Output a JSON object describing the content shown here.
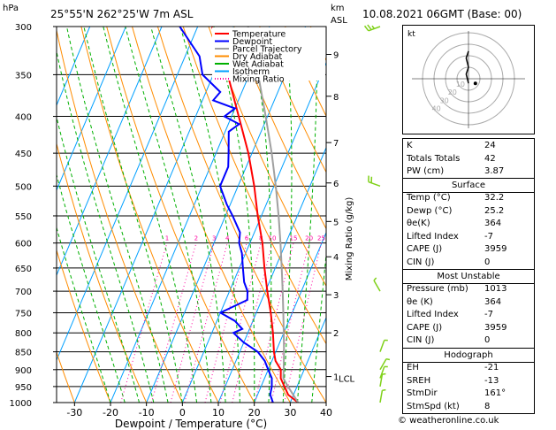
{
  "header": {
    "pressure_unit": "hPa",
    "location": "25°55'N  262°25'W  7m  ASL",
    "height_unit": "km",
    "height_unit2": "ASL",
    "datetime": "10.08.2021  06GMT  (Base: 00)"
  },
  "legend": {
    "items": [
      {
        "label": "Temperature",
        "color": "#ff0000",
        "style": "solid"
      },
      {
        "label": "Dewpoint",
        "color": "#0000ff",
        "style": "solid"
      },
      {
        "label": "Parcel Trajectory",
        "color": "#a0a0a0",
        "style": "solid"
      },
      {
        "label": "Dry Adiabat",
        "color": "#ff8c00",
        "style": "solid"
      },
      {
        "label": "Wet Adiabat",
        "color": "#00b000",
        "style": "solid"
      },
      {
        "label": "Isotherm",
        "color": "#00a0ff",
        "style": "solid"
      },
      {
        "label": "Mixing Ratio",
        "color": "#ff00a0",
        "style": "dotted"
      }
    ]
  },
  "chart_data": {
    "type": "line",
    "title": "",
    "xlabel": "Dewpoint / Temperature (°C)",
    "ylabel": "hPa",
    "y2label": "Mixing Ratio (g/kg)",
    "xlim": [
      -35,
      40
    ],
    "ylim": [
      1000,
      300
    ],
    "y_scale": "log",
    "x_ticks": [
      -30,
      -20,
      -10,
      0,
      10,
      20,
      30,
      40
    ],
    "pressure_levels": [
      300,
      350,
      400,
      450,
      500,
      550,
      600,
      650,
      700,
      750,
      800,
      850,
      900,
      950,
      1000
    ],
    "km_ticks": [
      {
        "km": "1",
        "p": 920
      },
      {
        "km": "2",
        "p": 800
      },
      {
        "km": "3",
        "p": 708
      },
      {
        "km": "4",
        "p": 627
      },
      {
        "km": "5",
        "p": 560
      },
      {
        "km": "6",
        "p": 495
      },
      {
        "km": "7",
        "p": 435
      },
      {
        "km": "8",
        "p": 375
      },
      {
        "km": "9",
        "p": 328
      }
    ],
    "lcl": {
      "label": "LCL",
      "p": 925
    },
    "mixing_ratio_labels": [
      "1",
      "2",
      "3",
      "4",
      "6",
      "8",
      "10",
      "15",
      "20",
      "25"
    ],
    "mixing_ratio_values": [
      1,
      2,
      3,
      4,
      6,
      8,
      10,
      15,
      20,
      25
    ],
    "series": [
      {
        "name": "Temperature",
        "color": "#ff0000",
        "points": [
          [
            1000,
            32.2
          ],
          [
            975,
            28.5
          ],
          [
            950,
            26.5
          ],
          [
            925,
            24.5
          ],
          [
            900,
            23.5
          ],
          [
            875,
            21
          ],
          [
            850,
            19.5
          ],
          [
            800,
            17
          ],
          [
            750,
            14
          ],
          [
            700,
            10.5
          ],
          [
            650,
            7
          ],
          [
            600,
            3.5
          ],
          [
            550,
            -1
          ],
          [
            500,
            -5.5
          ],
          [
            450,
            -11
          ],
          [
            400,
            -18
          ],
          [
            350,
            -26
          ],
          [
            300,
            -36
          ]
        ]
      },
      {
        "name": "Dewpoint",
        "color": "#0000ff",
        "points": [
          [
            1000,
            25.2
          ],
          [
            975,
            23.5
          ],
          [
            950,
            23
          ],
          [
            925,
            22
          ],
          [
            900,
            20
          ],
          [
            875,
            18
          ],
          [
            850,
            15
          ],
          [
            825,
            10
          ],
          [
            800,
            6
          ],
          [
            790,
            8
          ],
          [
            770,
            5
          ],
          [
            750,
            0
          ],
          [
            720,
            6
          ],
          [
            700,
            5
          ],
          [
            680,
            3
          ],
          [
            650,
            1
          ],
          [
            620,
            -1
          ],
          [
            600,
            -3
          ],
          [
            580,
            -4
          ],
          [
            550,
            -8
          ],
          [
            530,
            -11
          ],
          [
            500,
            -15
          ],
          [
            470,
            -15
          ],
          [
            450,
            -16.5
          ],
          [
            420,
            -19
          ],
          [
            410,
            -17
          ],
          [
            400,
            -22
          ],
          [
            390,
            -20
          ],
          [
            380,
            -27
          ],
          [
            370,
            -26
          ],
          [
            350,
            -33
          ],
          [
            330,
            -36
          ],
          [
            300,
            -45
          ]
        ]
      },
      {
        "name": "Parcel Trajectory",
        "color": "#a0a0a0",
        "points": [
          [
            1000,
            32.2
          ],
          [
            950,
            27.5
          ],
          [
            925,
            25.2
          ],
          [
            900,
            24.3
          ],
          [
            850,
            22.3
          ],
          [
            800,
            20
          ],
          [
            750,
            17.5
          ],
          [
            700,
            14.8
          ],
          [
            650,
            11.8
          ],
          [
            600,
            8.5
          ],
          [
            550,
            4.8
          ],
          [
            500,
            0.5
          ],
          [
            450,
            -4.5
          ],
          [
            400,
            -10.5
          ],
          [
            350,
            -17.5
          ],
          [
            300,
            -26
          ]
        ]
      }
    ]
  },
  "hodograph": {
    "unit": "kt",
    "ring_labels": [
      "10",
      "20",
      "30",
      "40"
    ],
    "trace": [
      [
        0,
        -2
      ],
      [
        -1,
        2
      ],
      [
        0,
        5
      ],
      [
        -1,
        9
      ],
      [
        0,
        12
      ]
    ],
    "storm_motion": [
      3,
      -2
    ]
  },
  "wind_barbs": [
    {
      "p": 300,
      "dir": 250,
      "spd": 15
    },
    {
      "p": 500,
      "dir": 290,
      "spd": 10
    },
    {
      "p": 700,
      "dir": 330,
      "spd": 5
    },
    {
      "p": 850,
      "dir": 20,
      "spd": 5
    },
    {
      "p": 900,
      "dir": 30,
      "spd": 5
    },
    {
      "p": 925,
      "dir": 20,
      "spd": 5
    },
    {
      "p": 950,
      "dir": 10,
      "spd": 5
    },
    {
      "p": 1000,
      "dir": 10,
      "spd": 5
    }
  ],
  "indices": [
    {
      "k": "K",
      "v": "24"
    },
    {
      "k": "Totals Totals",
      "v": "42"
    },
    {
      "k": "PW (cm)",
      "v": "3.87"
    }
  ],
  "surface": {
    "title": "Surface",
    "rows": [
      {
        "k": "Temp (°C)",
        "v": "32.2"
      },
      {
        "k": "Dewp (°C)",
        "v": "25.2"
      },
      {
        "k": "θe(K)",
        "v": "364"
      },
      {
        "k": "Lifted Index",
        "v": "-7"
      },
      {
        "k": "CAPE (J)",
        "v": "3959"
      },
      {
        "k": "CIN (J)",
        "v": "0"
      }
    ]
  },
  "most_unstable": {
    "title": "Most Unstable",
    "rows": [
      {
        "k": "Pressure (mb)",
        "v": "1013"
      },
      {
        "k": "θe (K)",
        "v": "364"
      },
      {
        "k": "Lifted Index",
        "v": "-7"
      },
      {
        "k": "CAPE (J)",
        "v": "3959"
      },
      {
        "k": "CIN (J)",
        "v": "0"
      }
    ]
  },
  "hodo_table": {
    "title": "Hodograph",
    "rows": [
      {
        "k": "EH",
        "v": "-21"
      },
      {
        "k": "SREH",
        "v": "-13"
      },
      {
        "k": "StmDir",
        "v": "161°"
      },
      {
        "k": "StmSpd (kt)",
        "v": "8"
      }
    ]
  },
  "footer": "© weatheronline.co.uk"
}
